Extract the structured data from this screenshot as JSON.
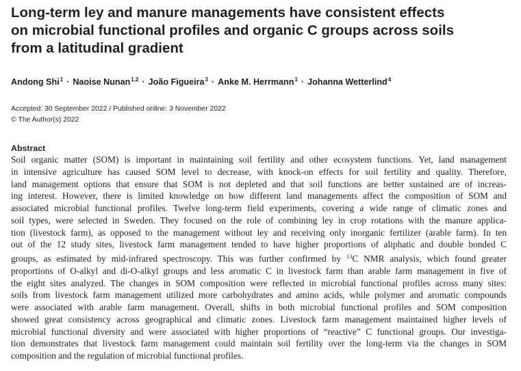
{
  "title": {
    "line1": "Long-term ley and manure managements have consistent effects",
    "line2": "on microbial functional profiles and organic C groups across soils",
    "line3": "from a latitudinal gradient"
  },
  "authors": [
    {
      "name": "Andong Shi",
      "aff": "1"
    },
    {
      "name": "Naoise Nunan",
      "aff": "1,2"
    },
    {
      "name": "João Figueira",
      "aff": "3"
    },
    {
      "name": "Anke M. Herrmann",
      "aff": "1"
    },
    {
      "name": "Johanna Wetterlind",
      "aff": "4"
    }
  ],
  "author_separator": "·",
  "dates": {
    "accepted": "Accepted: 30 September 2022",
    "published": "Published online: 3 November 2022",
    "separator": " / "
  },
  "copyright": "© The Author(s) 2022",
  "abstract": {
    "heading": "Abstract",
    "lines": [
      "Soil organic matter (SOM) is important in maintaining soil fertility and other ecosystem functions. Yet, land management",
      "in intensive agriculture has caused SOM level to decrease, with knock-on effects for soil fertility and quality. Therefore,",
      "land management options that ensure that SOM is not depleted and that soil functions are better sustained are of increas-",
      "ing interest. However, there is limited knowledge on how different land managements affect the composition of SOM and",
      "associated microbial functional profiles. Twelve long-term field experiments, covering a wide range of climatic zones and",
      "soil types, were selected in Sweden. They focused on the role of combining ley in crop rotations with the manure applica-",
      "tion (livestock farm), as opposed to the management without ley and receiving only inorganic fertilizer (arable farm). In ten",
      "out of the 12 study sites, livestock farm management tended to have higher proportions of aliphatic and double bonded C",
      "groups, as estimated by mid-infrared spectroscopy. This was further confirmed by ",
      "proportions of O-alkyl and di-O-alkyl groups and less aromatic C in livestock farm than arable farm management in five of",
      "the eight sites analyzed. The changes in SOM composition were reflected in microbial functional profiles across many sites:",
      "soils from livestock farm management utilized more carbohydrates and amino acids, while polymer and aromatic compounds",
      "were associated with arable farm management. Overall, shifts in both microbial functional profiles and SOM composition",
      "showed great consistency across geographical and climatic zones. Livestock farm management maintained higher levels of",
      "microbial functional diversity and were associated with higher proportions of “reactive” C functional groups. Our investiga-",
      "tion demonstrates that livestock farm management could maintain soil fertility over the long-term via the changes in SOM",
      "composition and the regulation of microbial functional profiles."
    ],
    "nmr_superscript": "13",
    "nmr_rest": "C NMR analysis, which found greater"
  }
}
